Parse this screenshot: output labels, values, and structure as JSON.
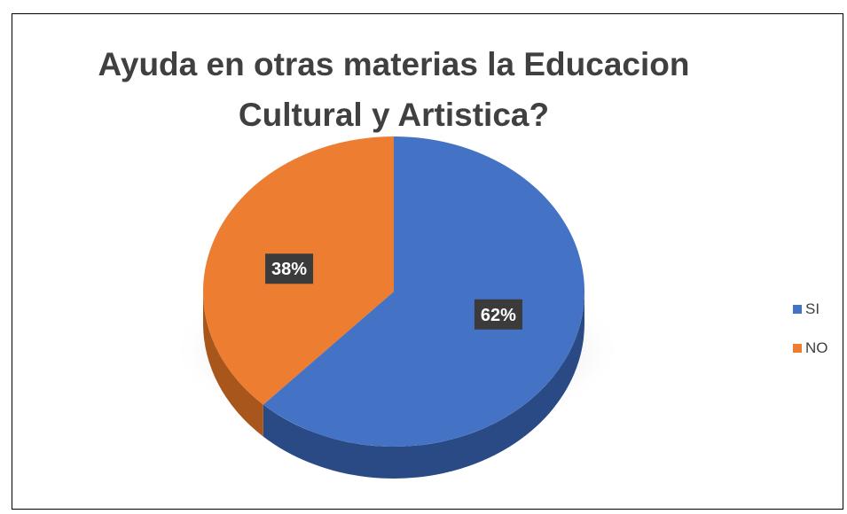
{
  "chart_data": {
    "type": "pie",
    "title": "Ayuda en otras materias la Educacion\nCultural y Artistica?",
    "categories": [
      "SI",
      "NO"
    ],
    "values": [
      62,
      38
    ],
    "data_labels": [
      "62%",
      "38%"
    ],
    "colors": [
      "#4472c4",
      "#ed7d31"
    ],
    "side_colors": [
      "#2a4a85",
      "#a9561d"
    ],
    "legend_position": "right",
    "style": "3d-pie"
  }
}
